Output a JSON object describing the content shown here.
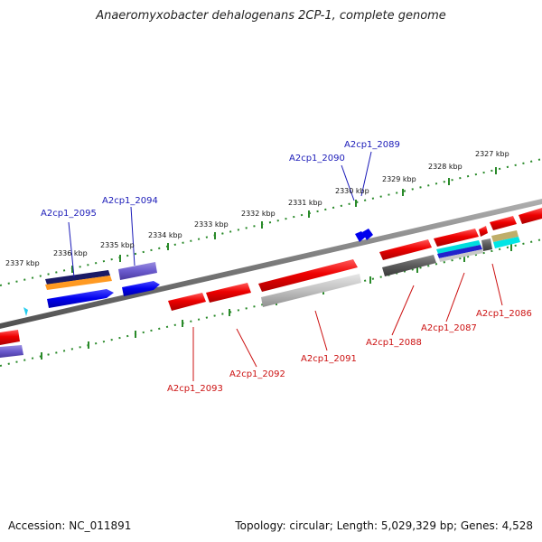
{
  "title": "Anaeromyxobacter dehalogenans 2CP-1, complete genome",
  "footer": {
    "accession": "Accession: NC_011891",
    "stats": "Topology: circular; Length: 5,029,329 bp; Genes: 4,528"
  },
  "kbp_labels": [
    "2337 kbp",
    "2336 kbp",
    "2335 kbp",
    "2334 kbp",
    "2333 kbp",
    "2332 kbp",
    "2331 kbp",
    "2330 kbp",
    "2329 kbp",
    "2328 kbp",
    "2327 kbp"
  ],
  "genes_top": [
    "A2cp1_2095",
    "A2cp1_2094",
    "A2cp1_2090",
    "A2cp1_2089"
  ],
  "genes_bottom": [
    "A2cp1_2093",
    "A2cp1_2092",
    "A2cp1_2091",
    "A2cp1_2088",
    "A2cp1_2087",
    "A2cp1_2086"
  ],
  "colors": {
    "top_label": "#1a1ab8",
    "bottom_label": "#cc1111",
    "tick": "#2a8a2a",
    "backbone": "#808080"
  }
}
